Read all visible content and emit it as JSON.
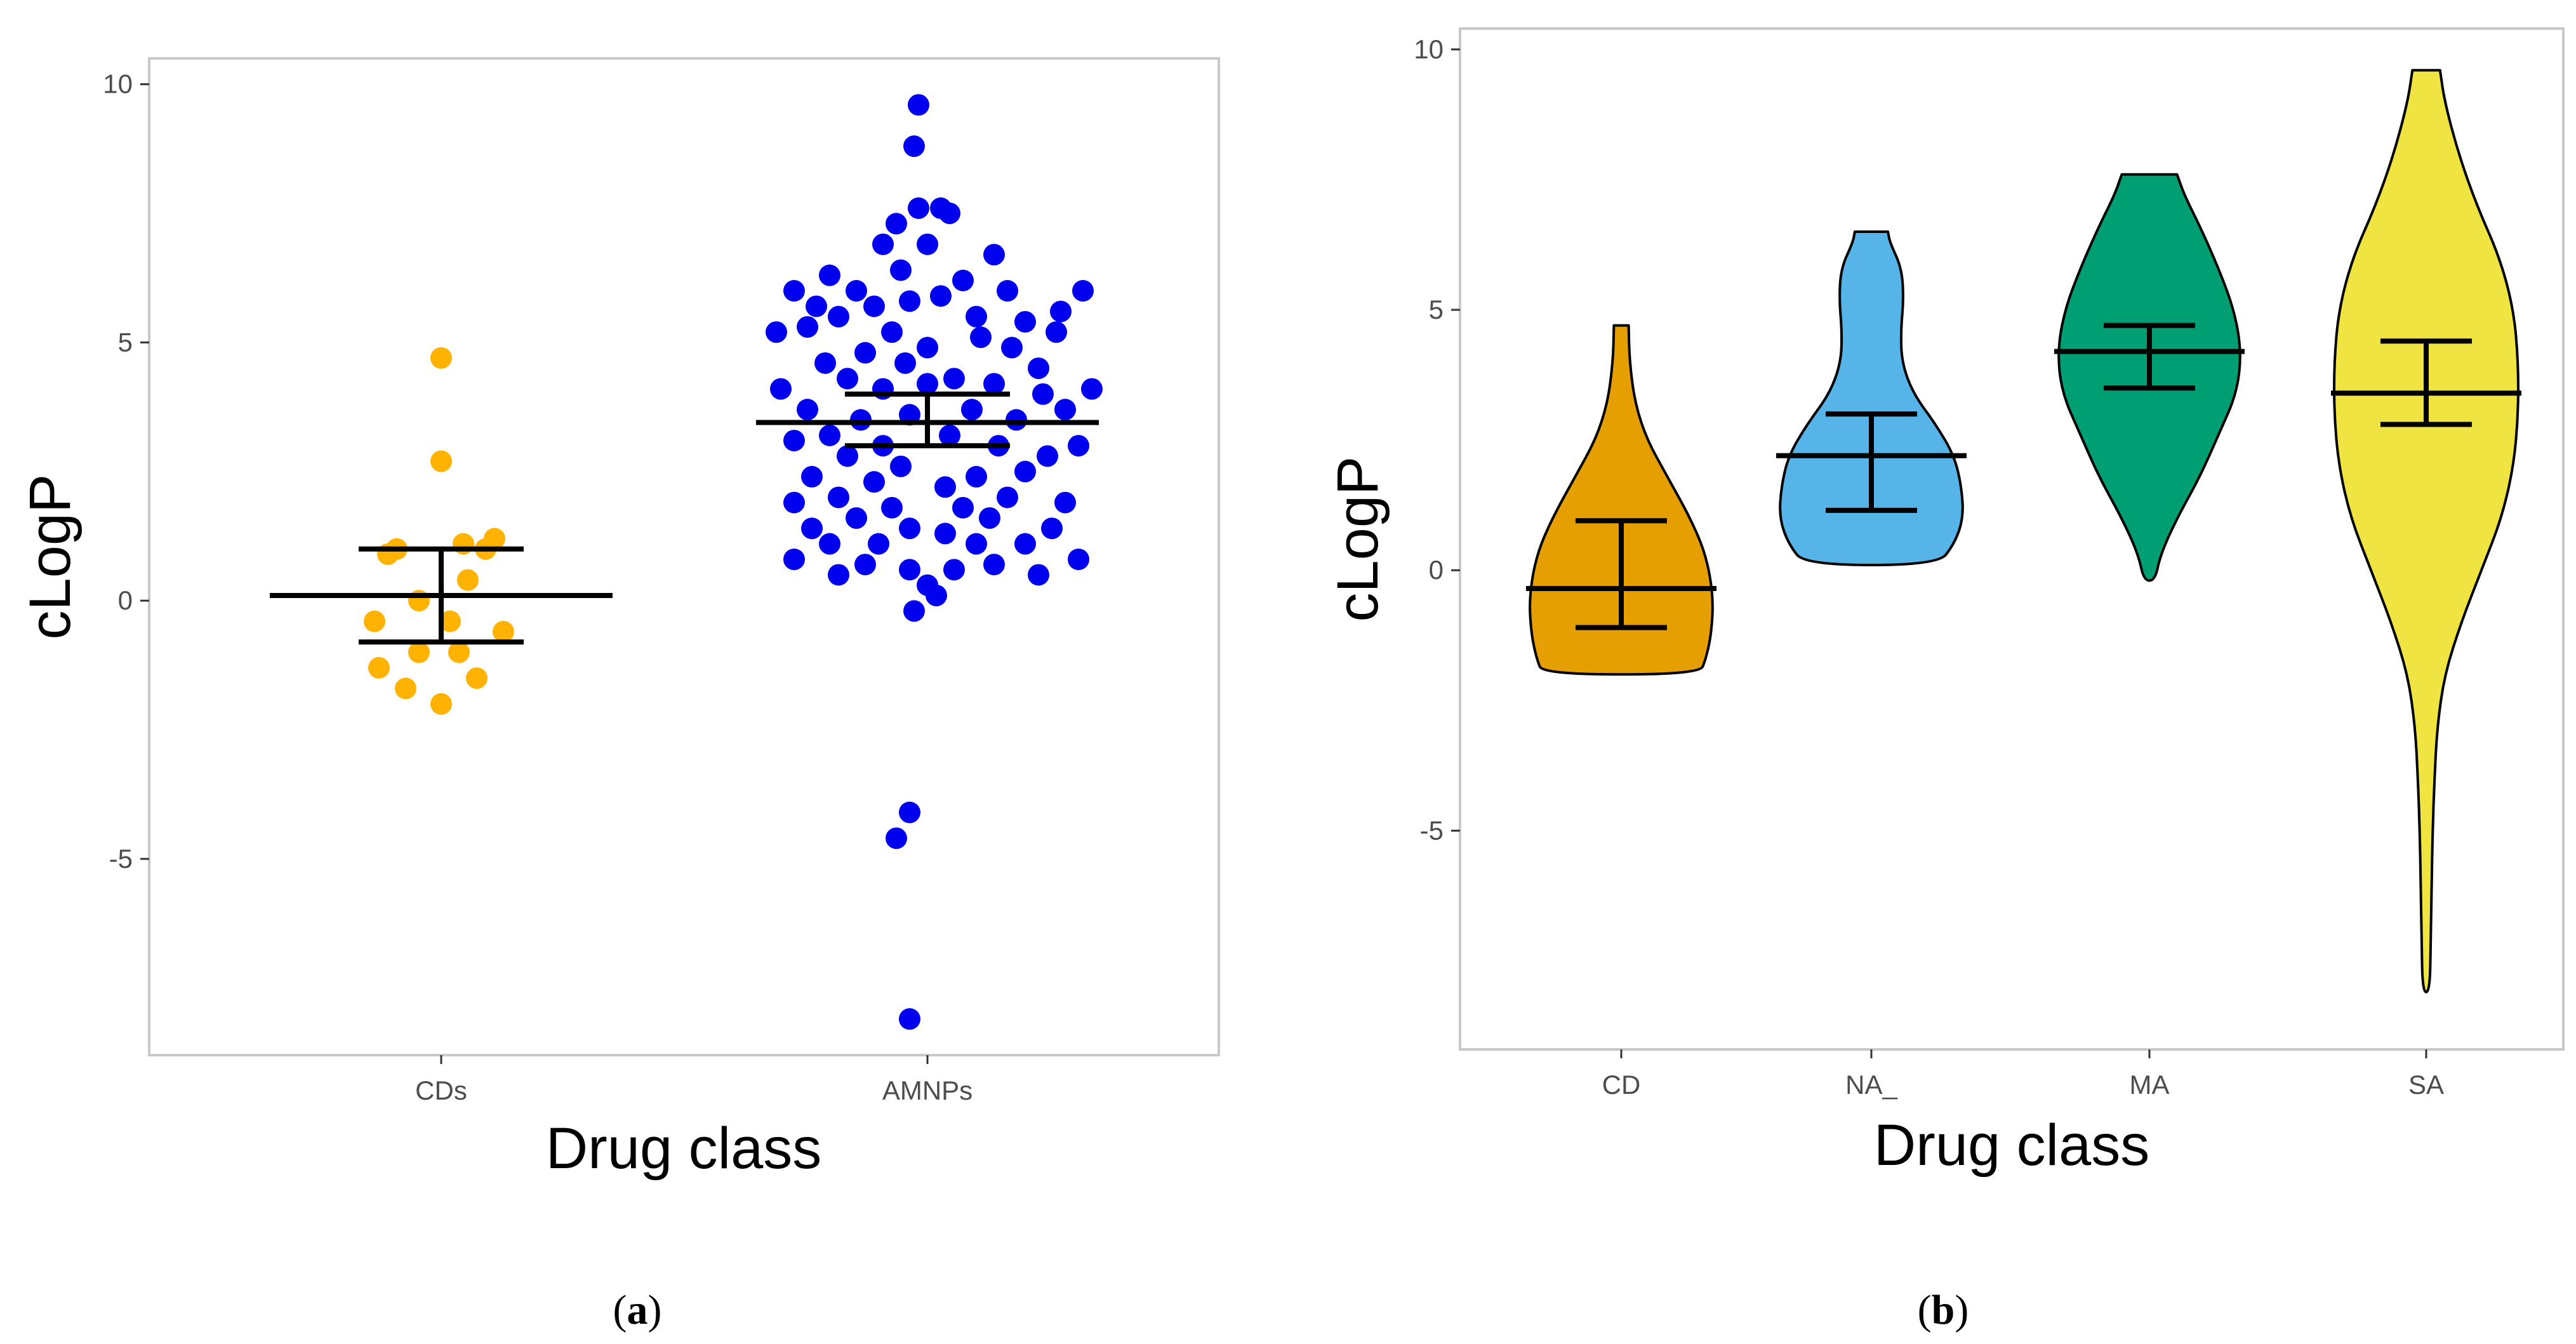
{
  "chart_data": [
    {
      "panel": "a",
      "type": "scatter",
      "subtype": "beeswarm",
      "xlabel": "Drug class",
      "ylabel": "cLogP",
      "ylim": [
        -8.8,
        10.5
      ],
      "yticks": [
        10,
        5,
        0,
        -5
      ],
      "ytick_labels": [
        "10",
        "5",
        "0",
        "-5"
      ],
      "grid": false,
      "panel_label": {
        "open": "(",
        "letter": "a",
        "close": ")"
      },
      "categories": [
        "CDs",
        "AMNPs"
      ],
      "series": [
        {
          "name": "CDs",
          "color": "#FFB300",
          "points": [
            [
              0.0,
              4.7
            ],
            [
              0.0,
              2.7
            ],
            [
              -0.1,
              1.0
            ],
            [
              0.05,
              1.1
            ],
            [
              0.1,
              1.0
            ],
            [
              0.12,
              1.2
            ],
            [
              -0.12,
              0.9
            ],
            [
              0.06,
              0.4
            ],
            [
              -0.05,
              0.0
            ],
            [
              -0.15,
              -0.4
            ],
            [
              0.02,
              -0.4
            ],
            [
              0.14,
              -0.6
            ],
            [
              -0.05,
              -1.0
            ],
            [
              0.04,
              -1.0
            ],
            [
              -0.14,
              -1.3
            ],
            [
              0.08,
              -1.5
            ],
            [
              -0.08,
              -1.7
            ],
            [
              0.0,
              -2.0
            ]
          ],
          "mean": 0.1,
          "error_low": -0.8,
          "error_high": 1.0
        },
        {
          "name": "AMNPs",
          "color": "#0000EE",
          "points": [
            [
              -0.02,
              9.6
            ],
            [
              -0.03,
              8.8
            ],
            [
              -0.02,
              7.6
            ],
            [
              0.03,
              7.6
            ],
            [
              -0.07,
              7.3
            ],
            [
              0.05,
              7.5
            ],
            [
              -0.1,
              6.9
            ],
            [
              0.0,
              6.9
            ],
            [
              0.15,
              6.7
            ],
            [
              -0.22,
              6.3
            ],
            [
              -0.06,
              6.4
            ],
            [
              0.08,
              6.2
            ],
            [
              -0.16,
              6.0
            ],
            [
              0.18,
              6.0
            ],
            [
              -0.3,
              6.0
            ],
            [
              0.35,
              6.0
            ],
            [
              -0.25,
              5.7
            ],
            [
              0.3,
              5.6
            ],
            [
              -0.12,
              5.7
            ],
            [
              0.03,
              5.9
            ],
            [
              -0.04,
              5.8
            ],
            [
              0.11,
              5.5
            ],
            [
              -0.2,
              5.5
            ],
            [
              0.22,
              5.4
            ],
            [
              -0.34,
              5.2
            ],
            [
              0.29,
              5.2
            ],
            [
              -0.27,
              5.3
            ],
            [
              0.12,
              5.1
            ],
            [
              -0.08,
              5.2
            ],
            [
              0.0,
              4.9
            ],
            [
              -0.14,
              4.8
            ],
            [
              0.19,
              4.9
            ],
            [
              -0.23,
              4.6
            ],
            [
              0.25,
              4.5
            ],
            [
              -0.05,
              4.6
            ],
            [
              0.06,
              4.3
            ],
            [
              -0.33,
              4.1
            ],
            [
              0.37,
              4.1
            ],
            [
              -0.18,
              4.3
            ],
            [
              0.15,
              4.2
            ],
            [
              -0.1,
              4.1
            ],
            [
              0.0,
              4.2
            ],
            [
              0.26,
              4.0
            ],
            [
              -0.27,
              3.7
            ],
            [
              0.31,
              3.7
            ],
            [
              -0.15,
              3.5
            ],
            [
              0.1,
              3.7
            ],
            [
              -0.04,
              3.6
            ],
            [
              0.2,
              3.5
            ],
            [
              -0.22,
              3.2
            ],
            [
              0.05,
              3.2
            ],
            [
              -0.1,
              3.0
            ],
            [
              0.16,
              3.0
            ],
            [
              -0.3,
              3.1
            ],
            [
              0.34,
              3.0
            ],
            [
              -0.18,
              2.8
            ],
            [
              0.27,
              2.8
            ],
            [
              -0.06,
              2.6
            ],
            [
              0.11,
              2.4
            ],
            [
              -0.26,
              2.4
            ],
            [
              0.22,
              2.5
            ],
            [
              -0.12,
              2.3
            ],
            [
              0.04,
              2.2
            ],
            [
              -0.2,
              2.0
            ],
            [
              0.18,
              2.0
            ],
            [
              -0.3,
              1.9
            ],
            [
              0.31,
              1.9
            ],
            [
              -0.08,
              1.8
            ],
            [
              0.08,
              1.8
            ],
            [
              -0.16,
              1.6
            ],
            [
              0.14,
              1.6
            ],
            [
              -0.26,
              1.4
            ],
            [
              0.28,
              1.4
            ],
            [
              -0.04,
              1.4
            ],
            [
              0.04,
              1.3
            ],
            [
              -0.11,
              1.1
            ],
            [
              0.11,
              1.1
            ],
            [
              -0.22,
              1.1
            ],
            [
              0.22,
              1.1
            ],
            [
              -0.3,
              0.8
            ],
            [
              0.34,
              0.8
            ],
            [
              -0.14,
              0.7
            ],
            [
              0.15,
              0.7
            ],
            [
              -0.04,
              0.6
            ],
            [
              0.06,
              0.6
            ],
            [
              -0.2,
              0.5
            ],
            [
              0.25,
              0.5
            ],
            [
              0.0,
              0.3
            ],
            [
              0.02,
              0.1
            ],
            [
              -0.03,
              -0.2
            ],
            [
              -0.04,
              -4.1
            ],
            [
              -0.07,
              -4.6
            ],
            [
              -0.04,
              -8.1
            ]
          ],
          "mean": 3.45,
          "error_low": 3.0,
          "error_high": 4.0
        }
      ]
    },
    {
      "panel": "b",
      "type": "violin",
      "xlabel": "Drug class",
      "ylabel": "cLogP",
      "ylim": [
        -9.2,
        10.4
      ],
      "yticks": [
        10,
        5,
        0,
        -5
      ],
      "ytick_labels": [
        "10",
        "5",
        "0",
        "-5"
      ],
      "grid": false,
      "panel_label": {
        "open": "(",
        "letter": "b",
        "close": ")"
      },
      "categories": [
        "CD",
        "NA_",
        "MA",
        "SA"
      ],
      "series": [
        {
          "name": "CD",
          "color": "#E69F00",
          "min": -2.0,
          "max": 4.7,
          "mean": -0.35,
          "error_low": -1.1,
          "error_high": 0.95,
          "density": [
            [
              -2.0,
              0.85
            ],
            [
              -1.7,
              0.92
            ],
            [
              -1.2,
              0.98
            ],
            [
              -0.5,
              1.0
            ],
            [
              0.3,
              0.92
            ],
            [
              1.0,
              0.75
            ],
            [
              1.8,
              0.5
            ],
            [
              2.5,
              0.28
            ],
            [
              3.2,
              0.15
            ],
            [
              4.0,
              0.09
            ],
            [
              4.7,
              0.08
            ]
          ]
        },
        {
          "name": "NA_",
          "color": "#56B4E9",
          "min": 0.1,
          "max": 6.5,
          "mean": 2.2,
          "error_low": 1.15,
          "error_high": 3.0,
          "density": [
            [
              0.1,
              0.72
            ],
            [
              0.5,
              0.9
            ],
            [
              1.0,
              1.0
            ],
            [
              1.6,
              0.98
            ],
            [
              2.2,
              0.9
            ],
            [
              2.8,
              0.7
            ],
            [
              3.4,
              0.45
            ],
            [
              4.0,
              0.33
            ],
            [
              4.6,
              0.32
            ],
            [
              5.2,
              0.35
            ],
            [
              5.8,
              0.33
            ],
            [
              6.3,
              0.2
            ],
            [
              6.5,
              0.18
            ]
          ]
        },
        {
          "name": "MA",
          "color": "#009E73",
          "min": -0.2,
          "max": 7.6,
          "mean": 4.2,
          "error_low": 3.5,
          "error_high": 4.7,
          "density": [
            [
              -0.2,
              0.06
            ],
            [
              0.3,
              0.12
            ],
            [
              1.0,
              0.3
            ],
            [
              1.8,
              0.55
            ],
            [
              2.6,
              0.75
            ],
            [
              3.4,
              0.95
            ],
            [
              4.2,
              1.0
            ],
            [
              5.0,
              0.92
            ],
            [
              5.8,
              0.75
            ],
            [
              6.6,
              0.55
            ],
            [
              7.2,
              0.38
            ],
            [
              7.6,
              0.3
            ]
          ]
        },
        {
          "name": "SA",
          "color": "#F0E442",
          "min": -8.1,
          "max": 9.6,
          "mean": 3.4,
          "error_low": 2.8,
          "error_high": 4.4,
          "density": [
            [
              -8.1,
              0.04
            ],
            [
              -7.0,
              0.05
            ],
            [
              -6.0,
              0.06
            ],
            [
              -5.0,
              0.07
            ],
            [
              -4.0,
              0.09
            ],
            [
              -3.0,
              0.12
            ],
            [
              -2.0,
              0.2
            ],
            [
              -1.0,
              0.38
            ],
            [
              0.0,
              0.6
            ],
            [
              1.0,
              0.82
            ],
            [
              2.0,
              0.95
            ],
            [
              3.0,
              1.0
            ],
            [
              4.0,
              1.0
            ],
            [
              5.0,
              0.95
            ],
            [
              6.0,
              0.8
            ],
            [
              7.0,
              0.55
            ],
            [
              8.0,
              0.35
            ],
            [
              9.0,
              0.2
            ],
            [
              9.6,
              0.15
            ]
          ]
        }
      ]
    }
  ]
}
